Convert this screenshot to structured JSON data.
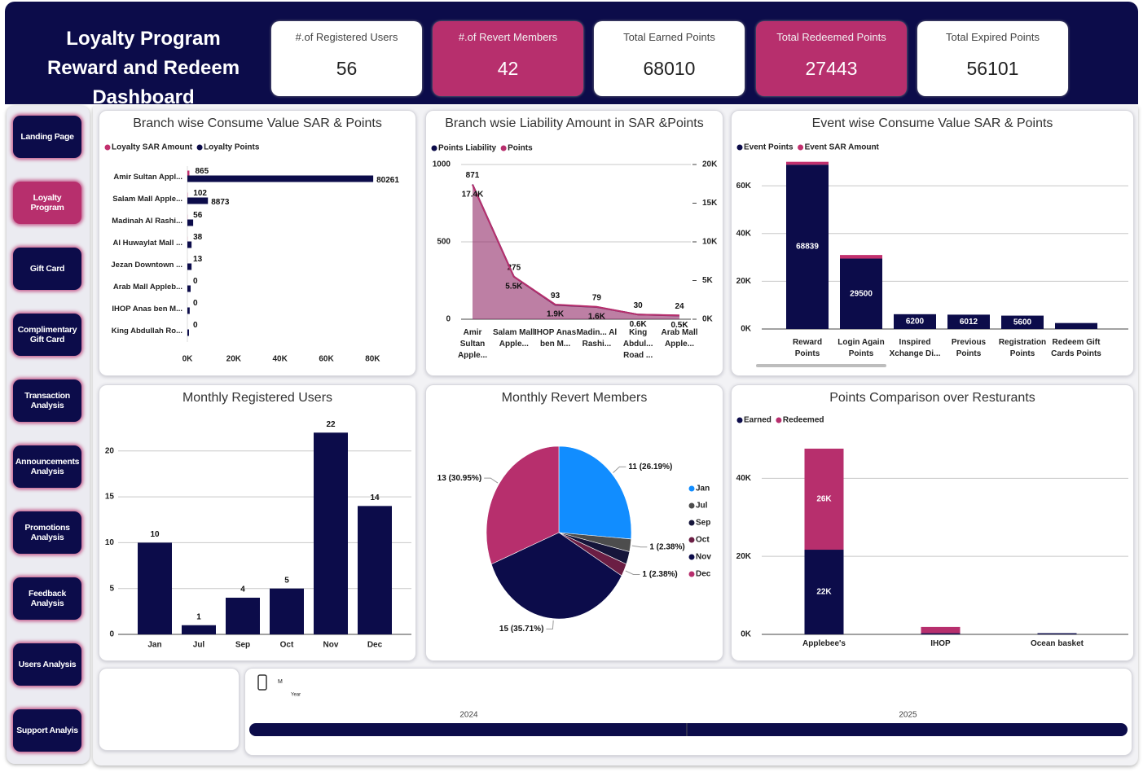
{
  "header": {
    "title": "Loyalty Program Reward and Redeem Dashboard"
  },
  "kpis": [
    {
      "label": "#.of Registered Users",
      "value": 56,
      "color": "#ffffff"
    },
    {
      "label": "#.of Revert Members",
      "value": 42,
      "color": "#b72f6d"
    },
    {
      "label": "Total Earned Points",
      "value": 68010,
      "color": "#ffffff"
    },
    {
      "label": "Total Redeemed Points",
      "value": 27443,
      "color": "#b72f6d"
    },
    {
      "label": "Total Expired Points",
      "value": 56101,
      "color": "#ffffff"
    }
  ],
  "nav": [
    {
      "label": "Landing Page",
      "color": "#0c0c4a"
    },
    {
      "label": "Loyalty Program",
      "color": "#b72f6d"
    },
    {
      "label": "Gift Card",
      "color": "#0c0c4a"
    },
    {
      "label": "Complimentary Gift Card",
      "color": "#0c0c4a"
    },
    {
      "label": "Transaction Analysis",
      "color": "#0c0c4a"
    },
    {
      "label": "Announcements Analysis",
      "color": "#0c0c4a"
    },
    {
      "label": "Promotions Analysis",
      "color": "#0c0c4a"
    },
    {
      "label": "Feedback Analysis",
      "color": "#0c0c4a"
    },
    {
      "label": "Users Analysis",
      "color": "#0c0c4a"
    },
    {
      "label": "Support Analyis",
      "color": "#0c0c4a"
    }
  ],
  "chart_data": [
    {
      "type": "hbar",
      "title": "Branch wise Consume Value SAR & Points",
      "categories": [
        "Amir Sultan Appl...",
        "Salam Mall Apple...",
        "Madinah Al Rashi...",
        "Al Huwaylat Mall ...",
        "Jezan Downtown ...",
        "Arab Mall Appleb...",
        "IHOP Anas ben M...",
        "King Abdullah Ro..."
      ],
      "series": [
        {
          "name": "Loyalty SAR Amount",
          "color": "#c2306e",
          "values": [
            865,
            102,
            56,
            38,
            13,
            0,
            0,
            0
          ]
        },
        {
          "name": "Loyalty Points",
          "color": "#0c0c4a",
          "values": [
            80261,
            8873,
            2500,
            1800,
            1800,
            1400,
            1000,
            700
          ],
          "value_labels": [
            "80261",
            "8873",
            null,
            null,
            null,
            null,
            null,
            null
          ]
        }
      ],
      "xlim": [
        0,
        95000
      ],
      "xticks": [
        {
          "value": 0,
          "label": "0K"
        },
        {
          "value": 20000,
          "label": "20K"
        },
        {
          "value": 40000,
          "label": "40K"
        },
        {
          "value": 60000,
          "label": "60K"
        },
        {
          "value": 80000,
          "label": "80K"
        }
      ],
      "grid": false
    },
    {
      "type": "area",
      "title": "Branch wsie Liability Amount in SAR &Points",
      "categories": [
        "Amir Sultan Apple...",
        "Salam Mall Apple...",
        "IHOP Anas ben M...",
        "Madin... Al Rashi...",
        "King Abdul... Road ...",
        "Arab Mall Apple..."
      ],
      "series": [
        {
          "name": "Points Liability",
          "color": "#0c0c4a",
          "values": [
            871,
            275,
            93,
            79,
            30,
            24
          ]
        },
        {
          "name": "Points",
          "color": "#b72f6d",
          "axis": "y2",
          "values": [
            17400,
            5500,
            1900,
            1600,
            600,
            500
          ],
          "value_labels": [
            "17.4K",
            "5.5K",
            "1.9K",
            "1.6K",
            "0.6K",
            "0.5K"
          ]
        }
      ],
      "ylim": [
        0,
        1000
      ],
      "yticks": [
        0,
        500,
        1000
      ],
      "y2lim": [
        0,
        20000
      ],
      "y2ticks": [
        {
          "value": 0,
          "label": "0K"
        },
        {
          "value": 5000,
          "label": "5K"
        },
        {
          "value": 10000,
          "label": "10K"
        },
        {
          "value": 15000,
          "label": "15K"
        },
        {
          "value": 20000,
          "label": "20K"
        }
      ],
      "grid": true
    },
    {
      "type": "stacked-column",
      "title": "Event wise Consume Value SAR & Points",
      "categories": [
        "Reward Points",
        "Login Again Points",
        "Inspired Xchange Di...",
        "Previous Points",
        "Registration Points",
        "Redeem Gift Cards Points"
      ],
      "series": [
        {
          "name": "Event Points",
          "color": "#0c0c4a",
          "values": [
            68839,
            29500,
            6200,
            6012,
            5600,
            2500
          ],
          "value_labels": [
            "68839",
            "29500",
            "6200",
            "6012",
            "5600",
            null
          ]
        },
        {
          "name": "Event SAR Amount",
          "color": "#c2306e",
          "values": [
            1200,
            1500,
            0,
            0,
            0,
            0
          ]
        }
      ],
      "ylim": [
        0,
        73000
      ],
      "yticks": [
        {
          "value": 0,
          "label": "0K"
        },
        {
          "value": 20000,
          "label": "20K"
        },
        {
          "value": 40000,
          "label": "40K"
        },
        {
          "value": 60000,
          "label": "60K"
        }
      ],
      "grid": true
    },
    {
      "type": "column",
      "title": "Monthly Registered Users",
      "categories": [
        "Jan",
        "Jul",
        "Sep",
        "Oct",
        "Nov",
        "Dec"
      ],
      "values": [
        10,
        1,
        4,
        5,
        22,
        14
      ],
      "color": "#0c0c4a",
      "ylim": [
        0,
        23
      ],
      "yticks": [
        0,
        5,
        10,
        15,
        20
      ],
      "grid": true
    },
    {
      "type": "pie",
      "title": "Monthly Revert Members",
      "categories": [
        "Jan",
        "Jul",
        "Sep",
        "Oct",
        "Nov",
        "Dec"
      ],
      "values": [
        11,
        1,
        1,
        1,
        15,
        13
      ],
      "value_labels": [
        "11 (26.19%)",
        "1 (2.38%)",
        null,
        "1 (2.38%)",
        "15 (35.71%)",
        "13 (30.95%)"
      ],
      "colors": [
        "#118dff",
        "#4d4d4d",
        "#15153a",
        "#6b1e44",
        "#0c0c4a",
        "#b72f6d"
      ]
    },
    {
      "type": "stacked-column",
      "title": "Points Comparison over Resturants",
      "categories": [
        "Applebee's",
        "IHOP",
        "Ocean basket"
      ],
      "series": [
        {
          "name": "Earned",
          "color": "#0c0c4a",
          "values": [
            21700,
            300,
            300
          ],
          "value_labels": [
            "22K",
            null,
            null
          ]
        },
        {
          "name": "Redeemed",
          "color": "#b72f6d",
          "values": [
            25900,
            1600,
            0
          ],
          "value_labels": [
            "26K",
            null,
            null
          ]
        }
      ],
      "ylim": [
        0,
        48000
      ],
      "yticks": [
        {
          "value": 0,
          "label": "0K"
        },
        {
          "value": 20000,
          "label": "20K"
        },
        {
          "value": 40000,
          "label": "40K"
        }
      ],
      "grid": true
    }
  ],
  "timeline": {
    "level": "M",
    "caption": "Year",
    "periods": [
      "2024",
      "2025"
    ]
  }
}
